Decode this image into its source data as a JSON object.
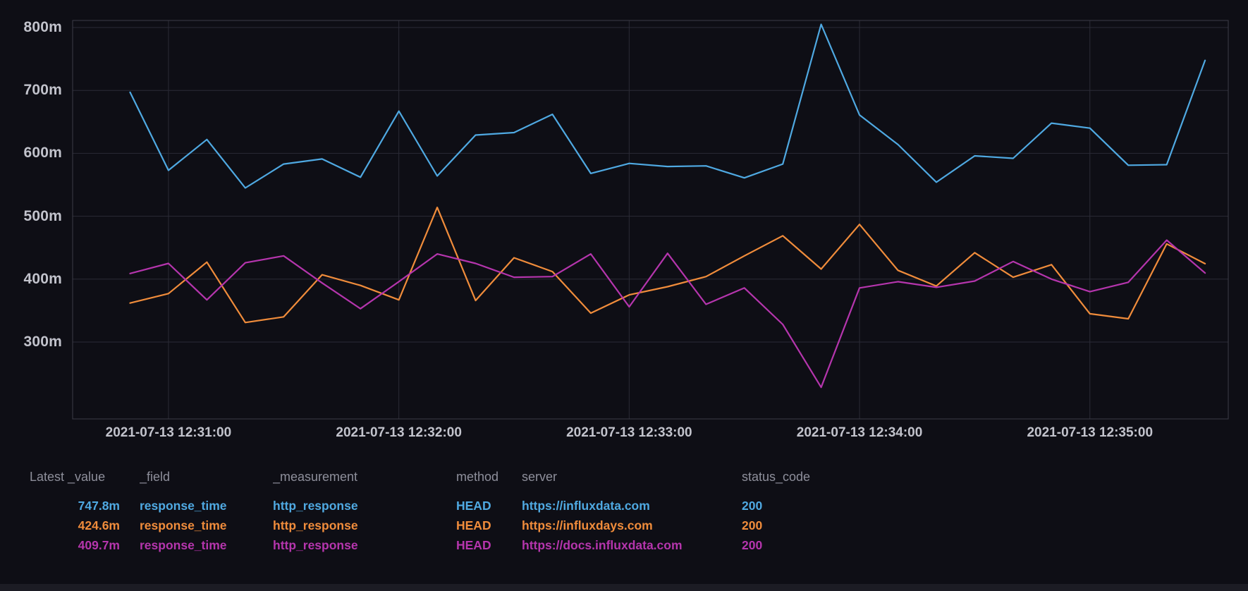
{
  "colors": {
    "background": "#0e0e15",
    "gridline": "#2b2b36",
    "plot_border": "#3c3c46",
    "tick_label": "#c2c3cc",
    "legend_header": "#8e8f9b",
    "scrollbar_track": "#1c1c24"
  },
  "chart_data": {
    "type": "line",
    "title": "",
    "date": "2021-07-13",
    "x_unit": "time (10s interval)",
    "y_unit": "m (milliseconds response_time)",
    "grid": true,
    "legend_position": "bottom-table",
    "ylim": [
      178,
      810
    ],
    "x": [
      "12:30:50",
      "12:31:00",
      "12:31:10",
      "12:31:20",
      "12:31:30",
      "12:31:40",
      "12:31:50",
      "12:32:00",
      "12:32:10",
      "12:32:20",
      "12:32:30",
      "12:32:40",
      "12:32:50",
      "12:33:00",
      "12:33:10",
      "12:33:20",
      "12:33:30",
      "12:33:40",
      "12:33:50",
      "12:34:00",
      "12:34:10",
      "12:34:20",
      "12:34:30",
      "12:34:40",
      "12:34:50",
      "12:35:00",
      "12:35:10",
      "12:35:20",
      "12:35:30"
    ],
    "series": [
      {
        "name": "https://influxdata.com",
        "color": "#4fa9e2",
        "values": [
          697,
          573,
          622,
          545,
          583,
          591,
          562,
          667,
          564,
          629,
          633,
          662,
          568,
          584,
          579,
          580,
          561,
          583,
          805,
          661,
          614,
          554,
          596,
          592,
          648,
          640,
          581,
          582,
          747.8
        ]
      },
      {
        "name": "https://influxdays.com",
        "color": "#f08c3b",
        "values": [
          362,
          377,
          427,
          331,
          340,
          407,
          390,
          367,
          514,
          366,
          434,
          412,
          346,
          375,
          388,
          404,
          437,
          469,
          416,
          487,
          414,
          389,
          442,
          403,
          423,
          345,
          337,
          456,
          424.6
        ]
      },
      {
        "name": "https://docs.influxdata.com",
        "color": "#b535ad",
        "values": [
          409,
          425,
          367,
          426,
          437,
          394,
          353,
          396,
          440,
          425,
          403,
          404,
          440,
          356,
          441,
          360,
          386,
          328,
          228,
          386,
          396,
          387,
          397,
          428,
          400,
          380,
          395,
          462,
          409.7
        ]
      }
    ],
    "y_ticks": [
      {
        "label": "800m",
        "value": 800
      },
      {
        "label": "700m",
        "value": 700
      },
      {
        "label": "600m",
        "value": 600
      },
      {
        "label": "500m",
        "value": 500
      },
      {
        "label": "400m",
        "value": 400
      },
      {
        "label": "300m",
        "value": 300
      }
    ],
    "x_ticks": [
      {
        "label": "2021-07-13 12:31:00",
        "index": 1
      },
      {
        "label": "2021-07-13 12:32:00",
        "index": 7
      },
      {
        "label": "2021-07-13 12:33:00",
        "index": 13
      },
      {
        "label": "2021-07-13 12:34:00",
        "index": 19
      },
      {
        "label": "2021-07-13 12:35:00",
        "index": 25
      }
    ]
  },
  "legend": {
    "headers": [
      "Latest _value",
      "_field",
      "_measurement",
      "method",
      "server",
      "status_code"
    ],
    "rows": [
      {
        "latest_value": "747.8m",
        "field": "response_time",
        "measurement": "http_response",
        "method": "HEAD",
        "server": "https://influxdata.com",
        "status_code": "200",
        "color": "#4fa9e2"
      },
      {
        "latest_value": "424.6m",
        "field": "response_time",
        "measurement": "http_response",
        "method": "HEAD",
        "server": "https://influxdays.com",
        "status_code": "200",
        "color": "#f08c3b"
      },
      {
        "latest_value": "409.7m",
        "field": "response_time",
        "measurement": "http_response",
        "method": "HEAD",
        "server": "https://docs.influxdata.com",
        "status_code": "200",
        "color": "#b535ad"
      }
    ]
  }
}
